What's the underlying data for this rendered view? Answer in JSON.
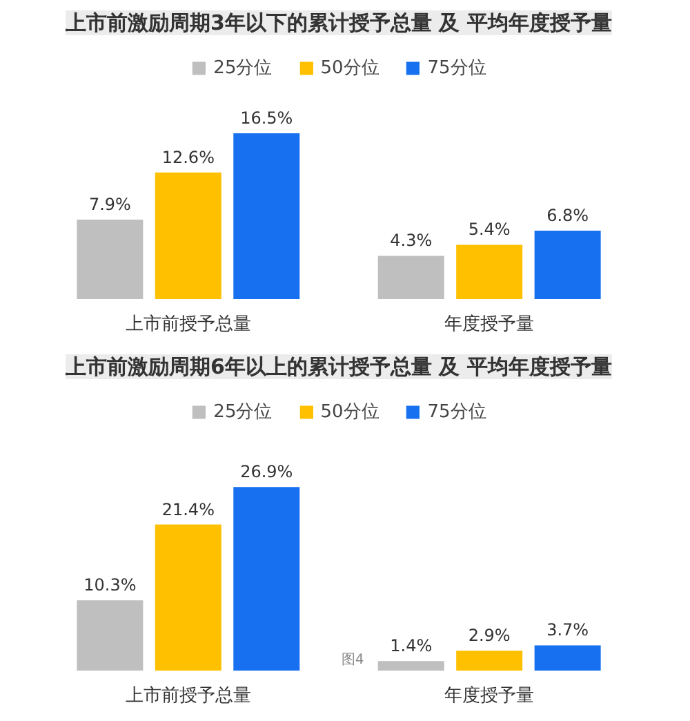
{
  "chart_data": [
    {
      "type": "bar",
      "title": "上市前激励周期3年以下的累计授予总量 及 平均年度授予量",
      "categories": [
        "上市前授予总量",
        "年度授予量"
      ],
      "legend": "top",
      "series": [
        {
          "name": "25分位",
          "color": "#bfbfbf",
          "values": [
            7.9,
            4.3
          ],
          "value_labels": [
            "7.9%",
            "4.3%"
          ]
        },
        {
          "name": "50分位",
          "color": "#ffc000",
          "values": [
            12.6,
            5.4
          ],
          "value_labels": [
            "12.6%",
            "5.4%"
          ]
        },
        {
          "name": "75分位",
          "color": "#1670f0",
          "values": [
            16.5,
            6.8
          ],
          "value_labels": [
            "16.5%",
            "6.8%"
          ]
        }
      ]
    },
    {
      "type": "bar",
      "title": "上市前激励周期6年以上的累计授予总量 及 平均年度授予量",
      "categories": [
        "上市前授予总量",
        "年度授予量"
      ],
      "legend": "top",
      "annotations": [
        "图4"
      ],
      "series": [
        {
          "name": "25分位",
          "color": "#bfbfbf",
          "values": [
            10.3,
            1.4
          ],
          "value_labels": [
            "10.3%",
            "1.4%"
          ]
        },
        {
          "name": "50分位",
          "color": "#ffc000",
          "values": [
            21.4,
            2.9
          ],
          "value_labels": [
            "21.4%",
            "2.9%"
          ]
        },
        {
          "name": "75分位",
          "color": "#1670f0",
          "values": [
            26.9,
            3.7
          ],
          "value_labels": [
            "26.9%",
            "3.7%"
          ]
        }
      ]
    }
  ]
}
